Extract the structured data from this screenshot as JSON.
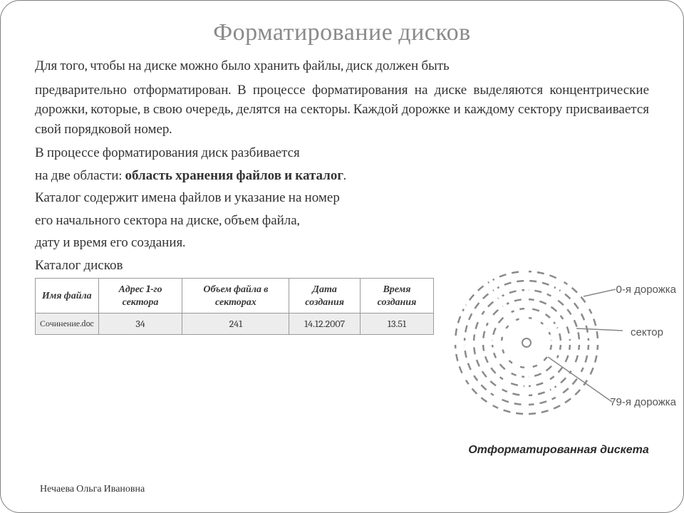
{
  "title": "Форматирование дисков",
  "paragraphs": {
    "p1": "Для того, чтобы на диске можно было хранить файлы, диск должен быть",
    "p2_a": "предварительно отформатирован",
    "p2_b": ". В процессе форматирования на диске выделяются концентрические дорожки, которые, в свою очередь, делятся на секторы. Каждой дорожке и каждому сектору присваивается свой порядковой номер.",
    "p3": "В процессе форматирования диск разбивается",
    "p4_a": "на две области: ",
    "p4_b": "область хранения файлов и каталог",
    "p4_c": ".",
    "p5": "Каталог содержит имена файлов и указание на номер",
    "p6": "его начального сектора на диске, объем файла,",
    "p7": "дату и время его создания.",
    "p8": "Каталог дисков"
  },
  "table": {
    "headers": [
      "Имя файла",
      "Адрес 1-го сектора",
      "Объем файла в секторах",
      "Дата создания",
      "Время создания"
    ],
    "row": [
      "Сочинение.doc",
      "34",
      "241",
      "14.12.2007",
      "13.51"
    ]
  },
  "diagram": {
    "label_track0": "0-я дорожка",
    "label_sector": "сектор",
    "label_track79": "79-я дорожка",
    "caption": "Отформатированная дискета",
    "ring_radii": [
      100,
      87,
      74,
      61,
      48,
      35
    ],
    "ring_color": "#8a8a8a",
    "ring_stroke": 2.5,
    "dash": "10 8",
    "sector_lines": 12,
    "pointer_color": "#888"
  },
  "footer": "Нечаева Ольга Ивановна",
  "colors": {
    "title": "#8a8a8a",
    "text": "#333333",
    "border": "#9a9a9a",
    "shade": "#ededed"
  }
}
